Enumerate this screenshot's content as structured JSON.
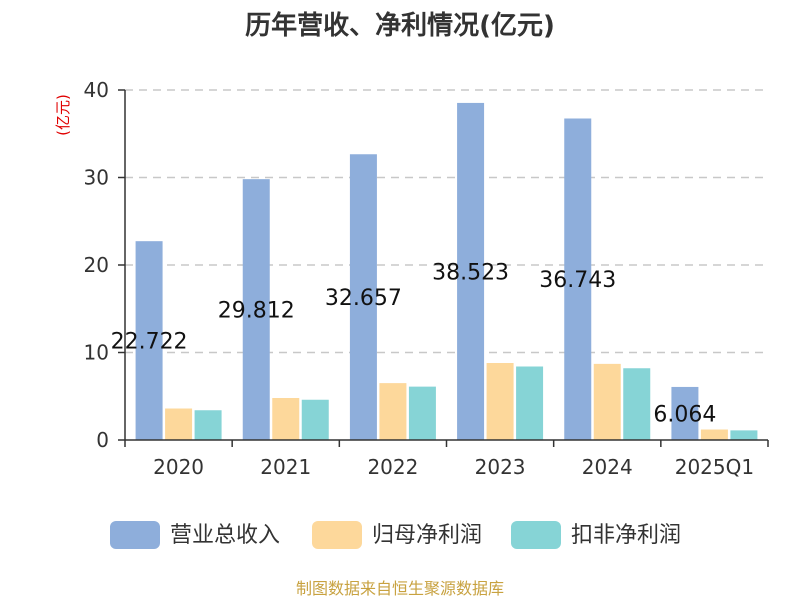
{
  "chart_data": {
    "type": "bar",
    "title": "历年营收、净利情况(亿元)",
    "unit_label": "(亿元)",
    "categories": [
      "2020",
      "2021",
      "2022",
      "2023",
      "2024",
      "2025Q1"
    ],
    "series": [
      {
        "name": "营业总收入",
        "color": "#8eaedb",
        "values": [
          22.722,
          29.812,
          32.657,
          38.523,
          36.743,
          6.064
        ],
        "labeled": true
      },
      {
        "name": "归母净利润",
        "color": "#fdd89b",
        "values": [
          3.6,
          4.8,
          6.5,
          8.8,
          8.7,
          1.2
        ],
        "labeled": false
      },
      {
        "name": "扣非净利润",
        "color": "#86d4d6",
        "values": [
          3.4,
          4.6,
          6.1,
          8.4,
          8.2,
          1.1
        ],
        "labeled": false
      }
    ],
    "yticks": [
      "0",
      "10",
      "20",
      "30",
      "40"
    ],
    "ylim": [
      0,
      40
    ],
    "grid": true,
    "legend_position": "bottom"
  },
  "source": "制图数据来自恒生聚源数据库"
}
